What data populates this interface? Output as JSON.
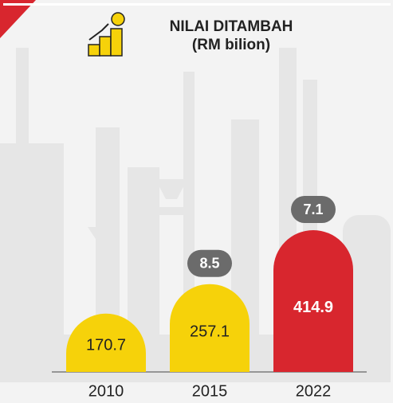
{
  "chart_data": {
    "type": "bar",
    "title": "NILAI DITAMBAH",
    "subtitle": "(RM bilion)",
    "categories": [
      "2010",
      "2015",
      "2022"
    ],
    "values": [
      170.7,
      257.1,
      414.9
    ],
    "colors": [
      "#f6d20a",
      "#f6d20a",
      "#d8262e"
    ],
    "growth": [
      null,
      8.5,
      7.1
    ]
  }
}
